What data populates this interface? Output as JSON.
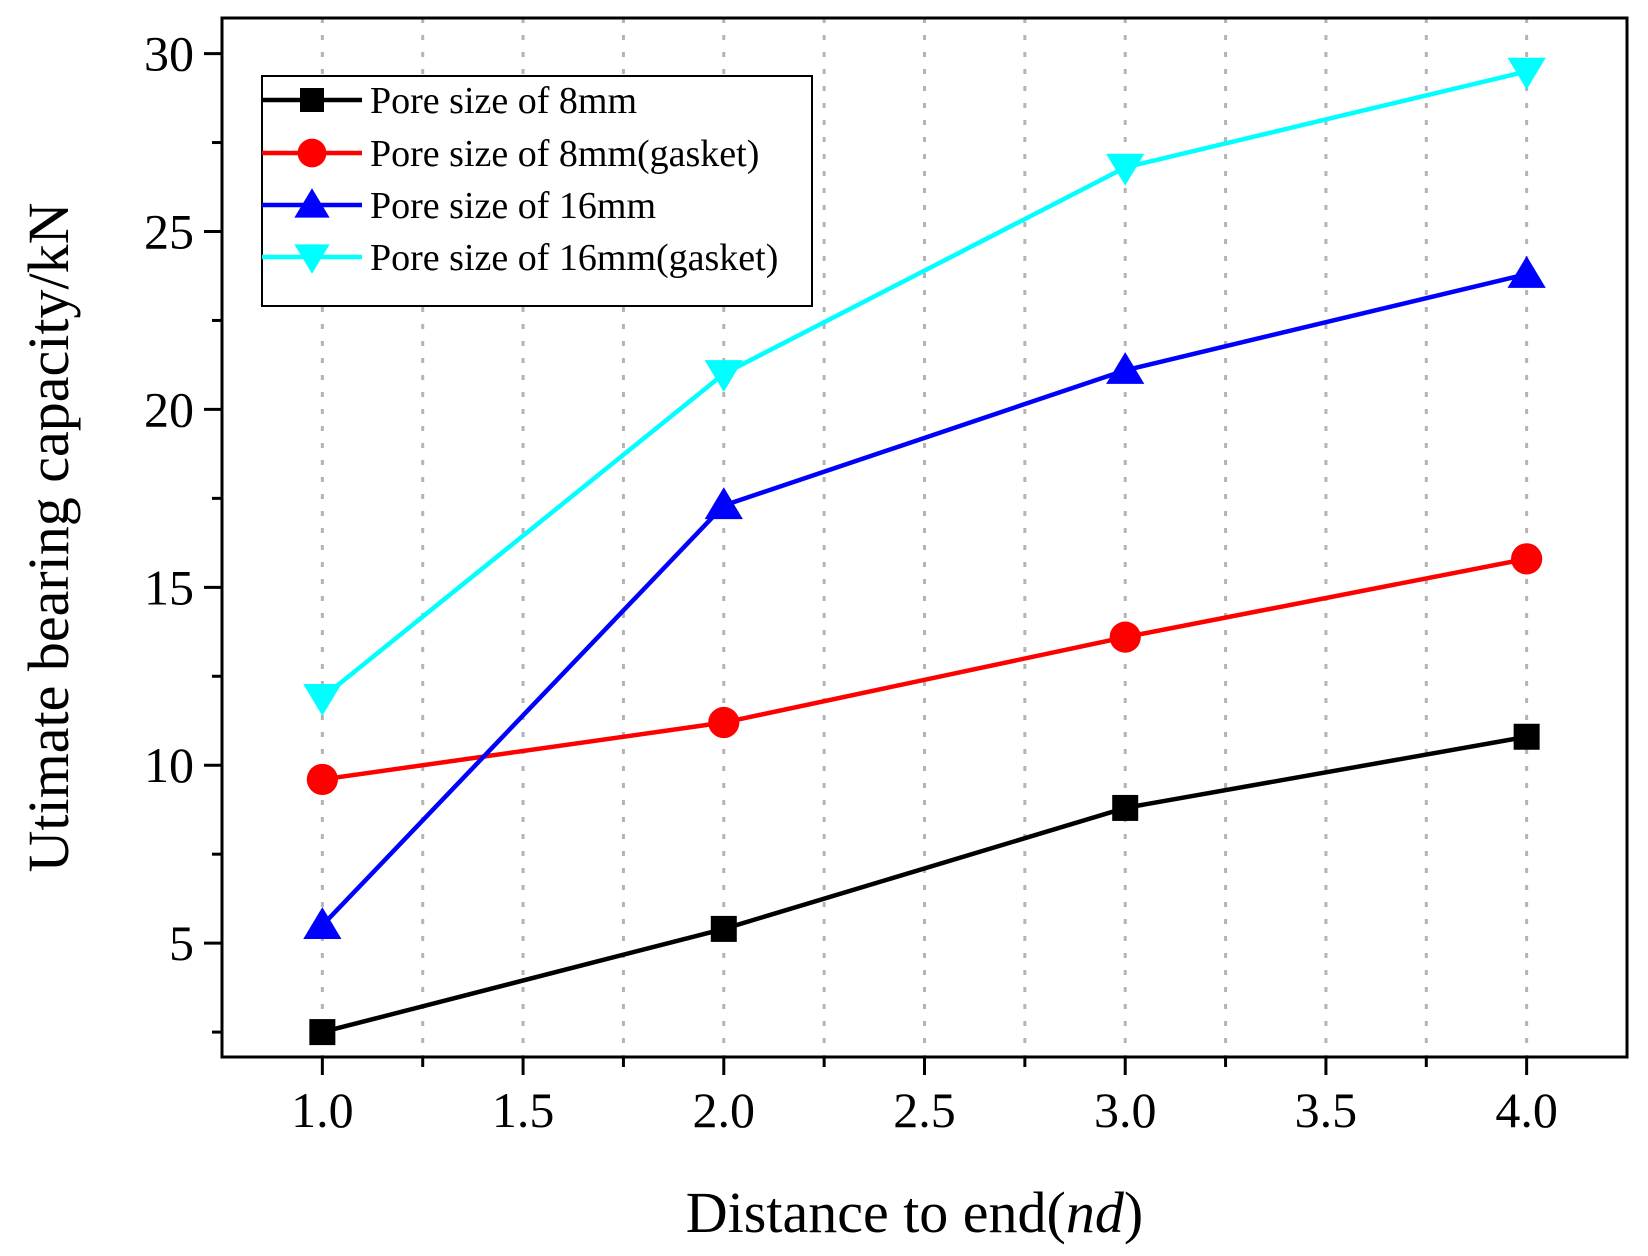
{
  "chart_data": {
    "type": "line",
    "xlabel": "Distance to end(",
    "xlabel_italic": "nd",
    "xlabel_suffix": ")",
    "ylabel": "Utimate bearing capacity/kN",
    "xlim": [
      0.75,
      4.25
    ],
    "ylim": [
      1.8,
      31.0
    ],
    "x_ticks": [
      1.0,
      1.5,
      2.0,
      2.5,
      3.0,
      3.5,
      4.0
    ],
    "x_tick_labels": [
      "1.0",
      "1.5",
      "2.0",
      "2.5",
      "3.0",
      "3.5",
      "4.0"
    ],
    "y_ticks": [
      5,
      10,
      15,
      20,
      25,
      30
    ],
    "y_tick_labels": [
      "5",
      "10",
      "15",
      "20",
      "25",
      "30"
    ],
    "grid": "vertical-dotted",
    "legend_position": "top-left",
    "x": [
      1.0,
      2.0,
      3.0,
      4.0
    ],
    "series": [
      {
        "name": "Pore size of 8mm",
        "color": "#000000",
        "marker": "square",
        "values": [
          2.5,
          5.4,
          8.8,
          10.8
        ]
      },
      {
        "name": "Pore size of 8mm(gasket)",
        "color": "#ff0000",
        "marker": "circle",
        "values": [
          9.6,
          11.2,
          13.6,
          15.8
        ]
      },
      {
        "name": "Pore size of 16mm",
        "color": "#0000ff",
        "marker": "triangle-up",
        "values": [
          5.5,
          17.3,
          21.1,
          23.8
        ]
      },
      {
        "name": "Pore size of 16mm(gasket)",
        "color": "#00ffff",
        "marker": "triangle-down",
        "values": [
          11.9,
          21.0,
          26.8,
          29.5
        ]
      }
    ]
  }
}
